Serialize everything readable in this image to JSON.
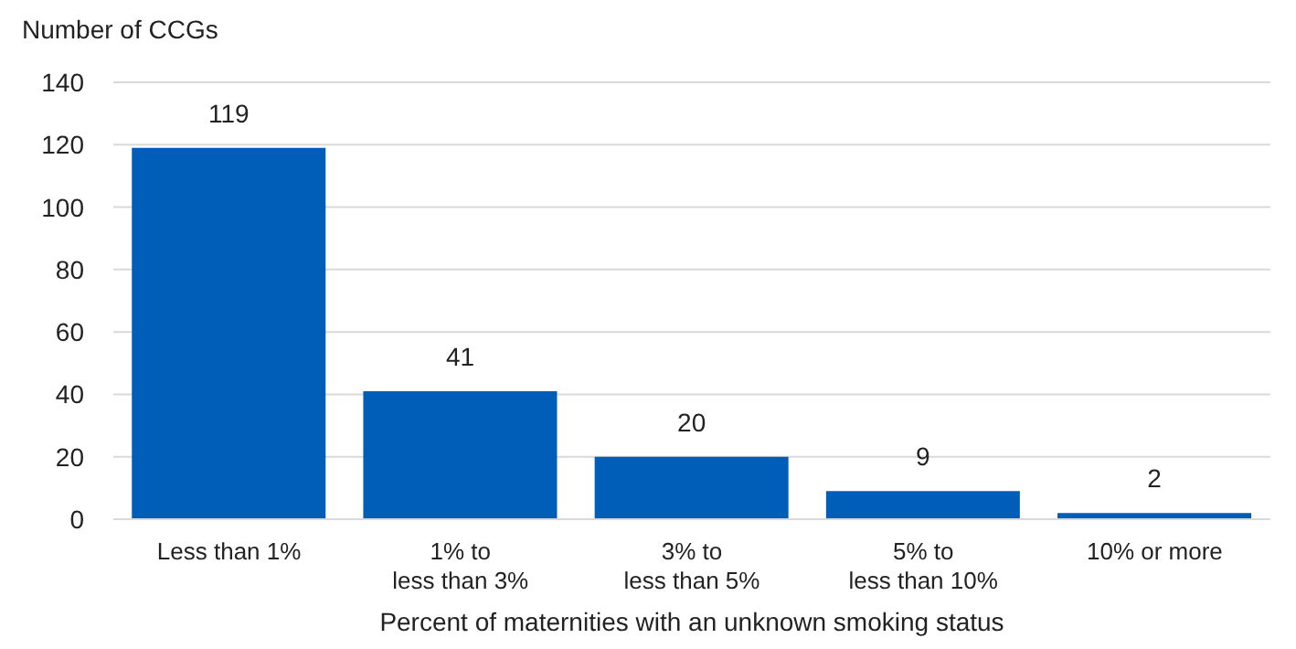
{
  "chart_data": {
    "type": "bar",
    "ylabel": "Number of CCGs",
    "xlabel": "Percent of maternities with an unknown smoking status",
    "categories": [
      "Less than 1%",
      "1% to\nless than 3%",
      "3% to\nless than 5%",
      "5% to\nless than 10%",
      "10% or more"
    ],
    "values": [
      119,
      41,
      20,
      9,
      2
    ],
    "color": "#005eb8",
    "ylim": [
      0,
      140
    ],
    "yticks": [
      0,
      20,
      40,
      60,
      80,
      100,
      120,
      140
    ],
    "grid": "y",
    "data_labels": true
  }
}
